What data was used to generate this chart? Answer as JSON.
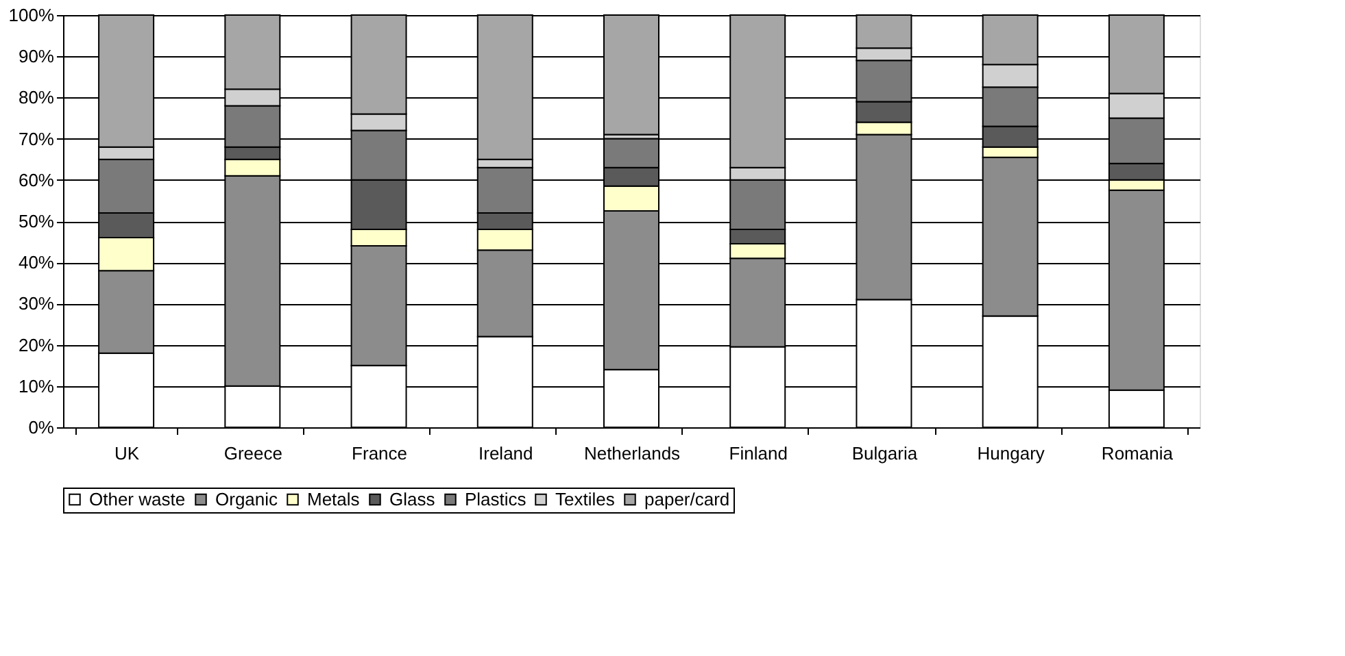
{
  "chart_data": {
    "type": "bar",
    "stacked": true,
    "categories": [
      "UK",
      "Greece",
      "France",
      "Ireland",
      "Netherlands",
      "Finland",
      "Bulgaria",
      "Hungary",
      "Romania"
    ],
    "series": [
      {
        "name": "Other waste",
        "color": "#ffffff",
        "values": [
          18,
          10,
          15,
          22,
          14,
          19.5,
          31,
          27,
          9
        ]
      },
      {
        "name": "Organic",
        "color": "#8c8c8c",
        "values": [
          20,
          51,
          29,
          21,
          38.5,
          21.5,
          40,
          38.5,
          48.5
        ]
      },
      {
        "name": "Metals",
        "color": "#ffffcc",
        "values": [
          8,
          4,
          4,
          5,
          6,
          3.5,
          3,
          2.5,
          2.5
        ]
      },
      {
        "name": "Glass",
        "color": "#5a5a5a",
        "values": [
          6,
          3,
          12,
          4,
          4.5,
          3.5,
          5,
          5,
          4
        ]
      },
      {
        "name": "Plastics",
        "color": "#7a7a7a",
        "values": [
          13,
          10,
          12,
          11,
          7,
          12,
          10,
          9.5,
          11
        ]
      },
      {
        "name": "Textiles",
        "color": "#d0d0d0",
        "values": [
          3,
          4,
          4,
          2,
          1,
          3,
          3,
          5.5,
          6
        ]
      },
      {
        "name": "paper/card",
        "color": "#a6a6a6",
        "values": [
          32,
          18,
          24,
          35,
          29,
          37,
          8,
          12,
          19
        ]
      }
    ],
    "ylim": [
      0,
      100
    ],
    "yticks": [
      {
        "value": 0,
        "label": "0%"
      },
      {
        "value": 10,
        "label": "10%"
      },
      {
        "value": 20,
        "label": "20%"
      },
      {
        "value": 30,
        "label": "30%"
      },
      {
        "value": 40,
        "label": "40%"
      },
      {
        "value": 50,
        "label": "50%"
      },
      {
        "value": 60,
        "label": "60%"
      },
      {
        "value": 70,
        "label": "70%"
      },
      {
        "value": 80,
        "label": "80%"
      },
      {
        "value": 90,
        "label": "90%"
      },
      {
        "value": 100,
        "label": "100%"
      }
    ],
    "grid": "y",
    "legend": "bottom"
  }
}
